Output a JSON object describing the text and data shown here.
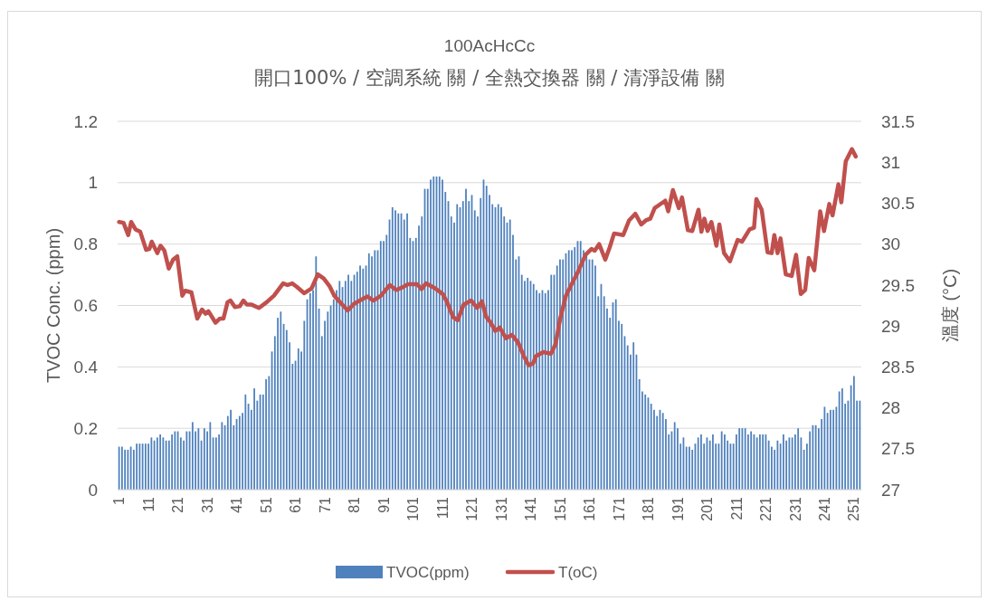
{
  "chart_data": {
    "type": "bar",
    "title": "100AcHcCc",
    "subtitle": "開口100% / 空調系統 關 / 全熱交換器 關 / 清淨設備 關",
    "ylabel": "TVOC Conc. (ppm)",
    "y2label": "溫度 (°C)",
    "x": [
      1,
      2,
      3,
      4,
      5,
      6,
      7,
      8,
      9,
      10,
      11,
      12,
      13,
      14,
      15,
      16,
      17,
      18,
      19,
      20,
      21,
      22,
      23,
      24,
      25,
      26,
      27,
      28,
      29,
      30,
      31,
      32,
      33,
      34,
      35,
      36,
      37,
      38,
      39,
      40,
      41,
      42,
      43,
      44,
      45,
      46,
      47,
      48,
      49,
      50,
      51,
      52,
      53,
      54,
      55,
      56,
      57,
      58,
      59,
      60,
      61,
      62,
      63,
      64,
      65,
      66,
      67,
      68,
      69,
      70,
      71,
      72,
      73,
      74,
      75,
      76,
      77,
      78,
      79,
      80,
      81,
      82,
      83,
      84,
      85,
      86,
      87,
      88,
      89,
      90,
      91,
      92,
      93,
      94,
      95,
      96,
      97,
      98,
      99,
      100,
      101,
      102,
      103,
      104,
      105,
      106,
      107,
      108,
      109,
      110,
      111,
      112,
      113,
      114,
      115,
      116,
      117,
      118,
      119,
      120,
      121,
      122,
      123,
      124,
      125,
      126,
      127,
      128,
      129,
      130,
      131,
      132,
      133,
      134,
      135,
      136,
      137,
      138,
      139,
      140,
      141,
      142,
      143,
      144,
      145,
      146,
      147,
      148,
      149,
      150,
      151,
      152,
      153,
      154,
      155,
      156,
      157,
      158,
      159,
      160,
      161,
      162,
      163,
      164,
      165,
      166,
      167,
      168,
      169,
      170,
      171,
      172,
      173,
      174,
      175,
      176,
      177,
      178,
      179,
      180,
      181,
      182,
      183,
      184,
      185,
      186,
      187,
      188,
      189,
      190,
      191,
      192,
      193,
      194,
      195,
      196,
      197,
      198,
      199,
      200,
      201,
      202,
      203,
      204,
      205,
      206,
      207,
      208,
      209,
      210,
      211,
      212,
      213,
      214,
      215,
      216,
      217,
      218,
      219,
      220,
      221,
      222,
      223,
      224,
      225,
      226,
      227,
      228,
      229,
      230,
      231,
      232,
      233,
      234,
      235,
      236,
      237,
      238,
      239,
      240,
      241,
      242,
      243,
      244,
      245,
      246,
      247,
      248,
      249,
      250,
      251,
      252,
      253
    ],
    "xlim": [
      0.5,
      253.5
    ],
    "xticks": [
      1,
      11,
      21,
      31,
      41,
      51,
      61,
      71,
      81,
      91,
      101,
      111,
      121,
      131,
      141,
      151,
      161,
      171,
      181,
      191,
      201,
      211,
      221,
      231,
      241,
      251
    ],
    "ylim": [
      0,
      1.2
    ],
    "yticks": [
      0,
      0.2,
      0.4,
      0.6,
      0.8,
      1,
      1.2
    ],
    "y2lim": [
      27,
      31.5
    ],
    "y2ticks": [
      27,
      27.5,
      28,
      28.5,
      29,
      29.5,
      30,
      30.5,
      31,
      31.5
    ],
    "grid": "y",
    "legend": "bottom",
    "series": [
      {
        "name": "TVOC(ppm)",
        "color": "#4f81bd",
        "values": [
          0.14,
          0.14,
          0.13,
          0.13,
          0.14,
          0.13,
          0.15,
          0.15,
          0.15,
          0.15,
          0.15,
          0.17,
          0.16,
          0.17,
          0.18,
          0.17,
          0.16,
          0.16,
          0.18,
          0.19,
          0.19,
          0.17,
          0.16,
          0.19,
          0.19,
          0.22,
          0.19,
          0.2,
          0.16,
          0.2,
          0.19,
          0.22,
          0.17,
          0.17,
          0.18,
          0.22,
          0.21,
          0.24,
          0.26,
          0.21,
          0.23,
          0.24,
          0.25,
          0.31,
          0.28,
          0.26,
          0.33,
          0.29,
          0.31,
          0.31,
          0.36,
          0.37,
          0.45,
          0.5,
          0.56,
          0.58,
          0.54,
          0.52,
          0.48,
          0.41,
          0.42,
          0.46,
          0.45,
          0.55,
          0.62,
          0.64,
          0.65,
          0.76,
          0.59,
          0.5,
          0.55,
          0.58,
          0.6,
          0.62,
          0.65,
          0.68,
          0.66,
          0.68,
          0.7,
          0.68,
          0.7,
          0.71,
          0.73,
          0.72,
          0.73,
          0.77,
          0.76,
          0.78,
          0.78,
          0.81,
          0.81,
          0.83,
          0.88,
          0.92,
          0.91,
          0.9,
          0.9,
          0.88,
          0.9,
          0.82,
          0.81,
          0.82,
          0.86,
          0.89,
          0.98,
          0.98,
          1.01,
          1.02,
          1.02,
          1.02,
          1.01,
          0.97,
          0.94,
          0.89,
          0.87,
          0.93,
          0.92,
          0.94,
          0.98,
          0.94,
          0.96,
          0.91,
          0.89,
          0.95,
          1.01,
          0.99,
          0.96,
          0.93,
          0.92,
          0.93,
          0.92,
          0.89,
          0.87,
          0.88,
          0.83,
          0.75,
          0.76,
          0.7,
          0.68,
          0.69,
          0.68,
          0.67,
          0.65,
          0.64,
          0.65,
          0.64,
          0.65,
          0.7,
          0.7,
          0.73,
          0.75,
          0.75,
          0.77,
          0.78,
          0.78,
          0.79,
          0.81,
          0.81,
          0.78,
          0.77,
          0.75,
          0.75,
          0.73,
          0.63,
          0.67,
          0.63,
          0.59,
          0.56,
          0.61,
          0.62,
          0.55,
          0.54,
          0.5,
          0.47,
          0.44,
          0.48,
          0.44,
          0.36,
          0.32,
          0.31,
          0.3,
          0.28,
          0.26,
          0.24,
          0.26,
          0.25,
          0.23,
          0.18,
          0.19,
          0.22,
          0.2,
          0.15,
          0.17,
          0.14,
          0.14,
          0.13,
          0.15,
          0.17,
          0.18,
          0.15,
          0.17,
          0.16,
          0.18,
          0.15,
          0.15,
          0.19,
          0.18,
          0.16,
          0.15,
          0.15,
          0.18,
          0.2,
          0.2,
          0.2,
          0.18,
          0.19,
          0.18,
          0.17,
          0.18,
          0.18,
          0.18,
          0.16,
          0.14,
          0.13,
          0.16,
          0.15,
          0.18,
          0.16,
          0.17,
          0.17,
          0.18,
          0.2,
          0.17,
          0.13,
          0.15,
          0.19,
          0.21,
          0.21,
          0.2,
          0.23,
          0.27,
          0.25,
          0.26,
          0.26,
          0.27,
          0.32,
          0.33,
          0.28,
          0.29,
          0.34,
          0.37,
          0.29,
          0.29
        ]
      },
      {
        "name": "T(oC)",
        "type": "line",
        "axis": "y2",
        "color": "#c0504d",
        "x": [
          1.0,
          2.5,
          4.1,
          5.1,
          6.6,
          8.2,
          10.2,
          11.3,
          12.1,
          14.0,
          15.1,
          16.4,
          17.9,
          19.4,
          20.8,
          22.5,
          23.5,
          25.6,
          27.6,
          29.2,
          30.4,
          31.4,
          33.8,
          35.3,
          36.5,
          37.9,
          38.9,
          40.4,
          42.0,
          43.3,
          44.5,
          46.1,
          48.6,
          51.2,
          53.7,
          56.8,
          58.3,
          59.9,
          61.4,
          64.0,
          66.5,
          68.6,
          70.6,
          72.7,
          74.2,
          76.2,
          78.8,
          80.9,
          82.9,
          85.5,
          87.5,
          90.1,
          93.1,
          95.2,
          97.3,
          99.3,
          102.4,
          103.9,
          105.4,
          108.5,
          111.1,
          112.6,
          114.6,
          116.2,
          118.2,
          120.8,
          122.8,
          124.4,
          125.9,
          127.4,
          129.0,
          130.5,
          132.6,
          134.6,
          136.7,
          138.7,
          140.3,
          141.8,
          142.8,
          145.3,
          147.9,
          149.5,
          151.0,
          153.0,
          155.1,
          157.1,
          159.7,
          161.7,
          162.8,
          164.3,
          166.4,
          167.9,
          169.4,
          172.5,
          174.5,
          176.6,
          178.6,
          180.2,
          181.7,
          183.2,
          184.8,
          186.8,
          187.8,
          189.4,
          191.4,
          192.5,
          194.5,
          196.0,
          198.1,
          199.1,
          200.1,
          201.2,
          202.5,
          204.2,
          205.2,
          206.8,
          208.8,
          211.4,
          212.9,
          215.5,
          217.0,
          217.8,
          219.6,
          221.6,
          223.0,
          223.9,
          225.0,
          226.0,
          227.8,
          229.8,
          231.3,
          232.9,
          234.4,
          235.6,
          237.5,
          239.5,
          240.8,
          242.6,
          243.7,
          245.7,
          246.7,
          248.2,
          250.3,
          251.6
        ],
        "values": [
          30.27,
          30.26,
          30.11,
          30.27,
          30.18,
          30.15,
          29.93,
          29.94,
          30.03,
          29.89,
          29.98,
          29.92,
          29.7,
          29.81,
          29.85,
          29.37,
          29.43,
          29.41,
          29.09,
          29.2,
          29.15,
          29.18,
          29.04,
          29.09,
          29.09,
          29.29,
          29.31,
          29.23,
          29.24,
          29.31,
          29.26,
          29.26,
          29.22,
          29.29,
          29.37,
          29.52,
          29.5,
          29.52,
          29.48,
          29.4,
          29.46,
          29.63,
          29.58,
          29.48,
          29.37,
          29.29,
          29.19,
          29.27,
          29.31,
          29.36,
          29.31,
          29.37,
          29.5,
          29.44,
          29.47,
          29.51,
          29.51,
          29.45,
          29.52,
          29.46,
          29.39,
          29.29,
          29.11,
          29.07,
          29.26,
          29.31,
          29.22,
          29.3,
          29.11,
          29.04,
          28.94,
          28.98,
          28.85,
          28.89,
          28.8,
          28.63,
          28.52,
          28.54,
          28.63,
          28.68,
          28.66,
          28.78,
          29.08,
          29.37,
          29.52,
          29.66,
          29.87,
          29.94,
          29.92,
          30.0,
          29.81,
          29.96,
          30.13,
          30.11,
          30.29,
          30.37,
          30.24,
          30.29,
          30.31,
          30.44,
          30.48,
          30.53,
          30.4,
          30.66,
          30.44,
          30.57,
          30.17,
          30.16,
          30.42,
          30.15,
          30.31,
          30.16,
          30.27,
          29.98,
          30.24,
          29.89,
          29.79,
          30.05,
          30.03,
          30.18,
          30.2,
          30.55,
          30.42,
          29.9,
          29.89,
          30.11,
          29.89,
          30.07,
          29.63,
          29.61,
          29.87,
          29.39,
          29.44,
          29.83,
          29.68,
          30.4,
          30.16,
          30.49,
          30.35,
          30.73,
          30.51,
          31.01,
          31.16,
          31.07
        ]
      }
    ]
  }
}
